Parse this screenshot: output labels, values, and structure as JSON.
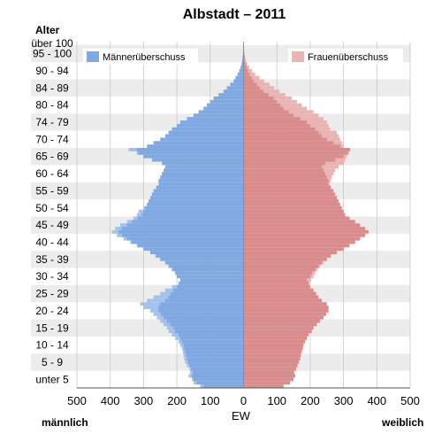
{
  "chart_data": {
    "type": "population-pyramid",
    "title": "Albstadt – 2011",
    "ylabel": "Alter",
    "xlabel": "EW",
    "left_label": "männlich",
    "right_label": "weiblich",
    "xlim": [
      -500,
      500
    ],
    "x_ticks": [
      500,
      400,
      300,
      200,
      100,
      0,
      100,
      200,
      300,
      400,
      500
    ],
    "y_tick_labels": [
      "über 100",
      "95 - 100",
      "90 - 94",
      "84 - 89",
      "80 - 84",
      "74 - 79",
      "70 - 74",
      "65 - 69",
      "60 - 64",
      "55 - 59",
      "50 - 54",
      "45 - 49",
      "40 - 44",
      "35 - 39",
      "30 - 34",
      "25 - 29",
      "20 - 24",
      "15 - 19",
      "10 - 14",
      "5 - 9",
      "unter 5"
    ],
    "legend": {
      "male_surplus": "Männerüberschuss",
      "female_surplus": "Frauenüberschuss",
      "placement": "top"
    },
    "ages": [
      0,
      1,
      2,
      3,
      4,
      5,
      6,
      7,
      8,
      9,
      10,
      11,
      12,
      13,
      14,
      15,
      16,
      17,
      18,
      19,
      20,
      21,
      22,
      23,
      24,
      25,
      26,
      27,
      28,
      29,
      30,
      31,
      32,
      33,
      34,
      35,
      36,
      37,
      38,
      39,
      40,
      41,
      42,
      43,
      44,
      45,
      46,
      47,
      48,
      49,
      50,
      51,
      52,
      53,
      54,
      55,
      56,
      57,
      58,
      59,
      60,
      61,
      62,
      63,
      64,
      65,
      66,
      67,
      68,
      69,
      70,
      71,
      72,
      73,
      74,
      75,
      76,
      77,
      78,
      79,
      80,
      81,
      82,
      83,
      84,
      85,
      86,
      87,
      88,
      89,
      90,
      91,
      92,
      93,
      94,
      95,
      96,
      97,
      98,
      99,
      100
    ],
    "male": [
      130,
      150,
      155,
      165,
      160,
      162,
      170,
      175,
      178,
      180,
      182,
      185,
      190,
      195,
      205,
      215,
      225,
      230,
      240,
      250,
      260,
      270,
      280,
      300,
      310,
      290,
      270,
      250,
      235,
      215,
      195,
      190,
      200,
      205,
      215,
      225,
      235,
      250,
      265,
      280,
      300,
      320,
      340,
      360,
      380,
      395,
      385,
      370,
      350,
      330,
      320,
      315,
      300,
      290,
      285,
      280,
      275,
      270,
      262,
      255,
      255,
      250,
      245,
      240,
      235,
      245,
      275,
      300,
      320,
      345,
      290,
      270,
      250,
      235,
      225,
      215,
      200,
      190,
      170,
      150,
      135,
      120,
      110,
      100,
      90,
      75,
      60,
      50,
      40,
      30,
      24,
      18,
      13,
      9,
      6,
      4,
      3,
      2,
      1,
      1,
      0
    ],
    "female": [
      120,
      140,
      150,
      155,
      152,
      158,
      162,
      166,
      170,
      172,
      175,
      178,
      180,
      185,
      190,
      195,
      205,
      210,
      220,
      230,
      240,
      248,
      255,
      255,
      250,
      235,
      225,
      218,
      210,
      200,
      198,
      203,
      210,
      215,
      222,
      230,
      240,
      250,
      262,
      280,
      300,
      318,
      335,
      350,
      365,
      375,
      365,
      350,
      335,
      318,
      305,
      300,
      295,
      290,
      285,
      280,
      275,
      270,
      262,
      258,
      262,
      265,
      270,
      275,
      285,
      300,
      305,
      310,
      315,
      320,
      300,
      295,
      290,
      285,
      280,
      260,
      255,
      250,
      240,
      225,
      210,
      190,
      175,
      160,
      145,
      125,
      108,
      92,
      78,
      62,
      48,
      35,
      25,
      17,
      11,
      7,
      5,
      3,
      2,
      1,
      1
    ],
    "colors": {
      "male": "#a2c1ec",
      "male_base": "#80a9e2",
      "female": "#e9b4b4",
      "female_base": "#d88c8c",
      "band": "#ececec",
      "grid": "#c8c8c8"
    }
  }
}
